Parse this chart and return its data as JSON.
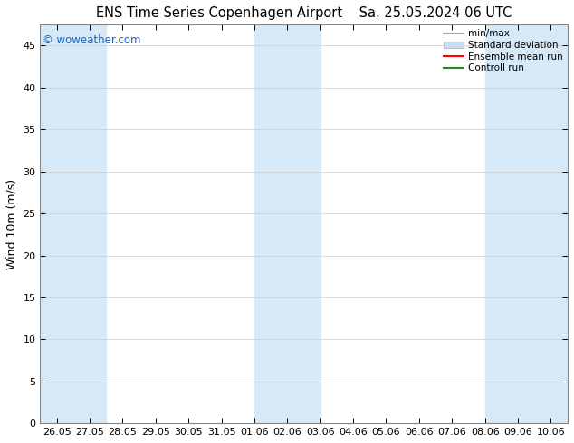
{
  "title": "ENS Time Series Copenhagen Airport",
  "title2": "Sa. 25.05.2024 06 UTC",
  "ylabel": "Wind 10m (m/s)",
  "ylim": [
    0,
    47.5
  ],
  "yticks": [
    0,
    5,
    10,
    15,
    20,
    25,
    30,
    35,
    40,
    45
  ],
  "xtick_labels": [
    "26.05",
    "27.05",
    "28.05",
    "29.05",
    "30.05",
    "31.05",
    "01.06",
    "02.06",
    "03.06",
    "04.06",
    "05.06",
    "06.06",
    "07.06",
    "08.06",
    "09.06",
    "10.06"
  ],
  "bg_color": "#ffffff",
  "plot_bg_color": "#ffffff",
  "band_color": "#d6e9f8",
  "watermark": "© woweather.com",
  "watermark_color": "#1166cc",
  "legend_labels": [
    "min/max",
    "Standard deviation",
    "Ensemble mean run",
    "Controll run"
  ],
  "legend_line_color": "#aaaaaa",
  "legend_band_color": "#c8dff0",
  "legend_red": "#ff0000",
  "legend_green": "#228822",
  "grid_color": "#cccccc",
  "spine_color": "#888888",
  "tick_color": "#000000",
  "title_fontsize": 10.5,
  "axis_label_fontsize": 9,
  "tick_fontsize": 8,
  "watermark_fontsize": 8.5
}
